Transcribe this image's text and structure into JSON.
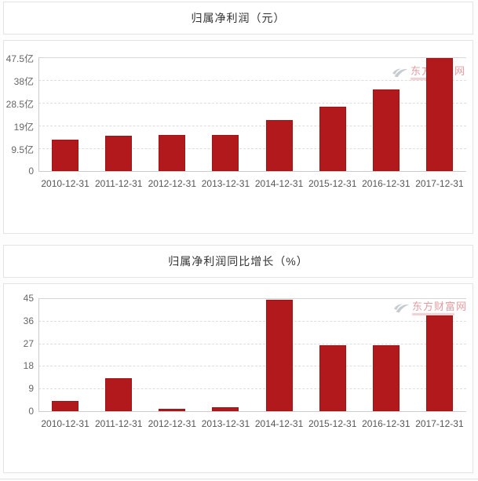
{
  "page": {
    "background": "#fdfdfd",
    "panel_border": "#e3e3e3"
  },
  "watermark": {
    "text": "东方财富网",
    "color": "#cd5a60"
  },
  "chart_data": [
    {
      "type": "bar",
      "title": "归属净利润（元）",
      "categories": [
        "2010-12-31",
        "2011-12-31",
        "2012-12-31",
        "2013-12-31",
        "2014-12-31",
        "2015-12-31",
        "2016-12-31",
        "2017-12-31"
      ],
      "values": [
        13.1,
        14.8,
        15.0,
        15.2,
        21.2,
        27.0,
        34.0,
        47.2
      ],
      "unit": "亿",
      "xlabel": "",
      "ylabel": "",
      "ylim": [
        0,
        47.5
      ],
      "tick_values": [
        0,
        9.5,
        19,
        28.5,
        38,
        47.5
      ],
      "tick_labels": [
        "0",
        "9.5亿",
        "19亿",
        "28.5亿",
        "38亿",
        "47.5亿"
      ],
      "bar_color": "#b2191c",
      "grid": "horizontal-dashed",
      "legend": "none"
    },
    {
      "type": "bar",
      "title": "归属净利润同比增长（%）",
      "categories": [
        "2010-12-31",
        "2011-12-31",
        "2012-12-31",
        "2013-12-31",
        "2014-12-31",
        "2015-12-31",
        "2016-12-31",
        "2017-12-31"
      ],
      "values": [
        4.2,
        13.0,
        1.0,
        1.5,
        44.4,
        26.1,
        26.4,
        38.0
      ],
      "unit": "%",
      "xlabel": "",
      "ylabel": "",
      "ylim": [
        0,
        45
      ],
      "tick_values": [
        0,
        9,
        18,
        27,
        36,
        45
      ],
      "tick_labels": [
        "0",
        "9",
        "18",
        "27",
        "36",
        "45"
      ],
      "bar_color": "#b2191c",
      "grid": "horizontal-dashed",
      "legend": "none"
    }
  ]
}
